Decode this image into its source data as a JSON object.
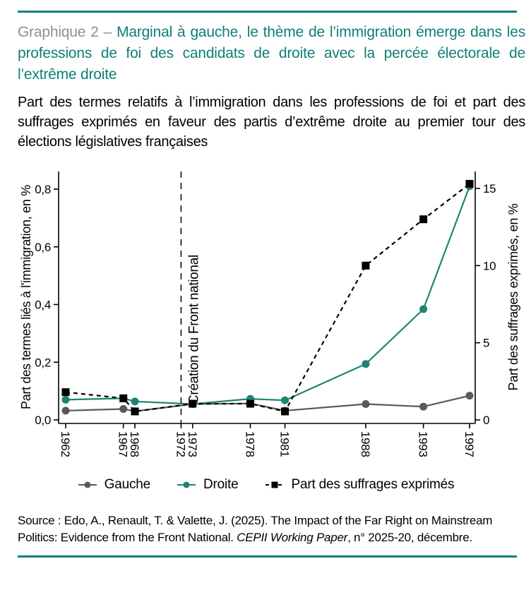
{
  "page": {
    "title_prefix": "Graphique 2 – ",
    "title": "Marginal à gauche, le thème de l’immigration émerge dans les professions de foi des candidats de droite avec la percée électorale de l’extrême droite",
    "subtitle": "Part des termes relatifs à l’immigration dans les professions de foi et part des suffrages exprimés en faveur des partis d’extrême droite au premier tour des élections législatives françaises",
    "source_prefix": "Source : Edo, A., Renault, T. & Valette, J. (2025). The Impact of the Far Right on Mainstream Politics: Evidence from the Front National. ",
    "source_italic": "CEPII Working Paper",
    "source_suffix": ", n° 2025-20, décembre."
  },
  "colors": {
    "teal": "#0e8076",
    "title_gray": "#8f8f8f",
    "line_teal": "#1e8473",
    "line_gray": "#595959",
    "black": "#000000"
  },
  "chart_data": {
    "type": "line",
    "x": [
      1962,
      1967,
      1968,
      1973,
      1978,
      1981,
      1988,
      1993,
      1997
    ],
    "x_ticks": [
      1962,
      1967,
      1968,
      1972,
      1973,
      1978,
      1981,
      1988,
      1993,
      1997
    ],
    "x_range": [
      1962,
      1997
    ],
    "series": [
      {
        "name": "Gauche",
        "axis": "left",
        "color": "#595959",
        "marker": "circle",
        "dash": false,
        "values": [
          0.032,
          0.038,
          0.03,
          0.055,
          0.057,
          0.032,
          0.055,
          0.046,
          0.084
        ]
      },
      {
        "name": "Droite",
        "axis": "left",
        "color": "#1e8473",
        "marker": "circle",
        "dash": false,
        "values": [
          0.07,
          0.075,
          0.064,
          0.055,
          0.073,
          0.068,
          0.194,
          0.384,
          0.81
        ]
      },
      {
        "name": "Part des suffrages exprimés",
        "axis": "right",
        "color": "#000000",
        "marker": "square",
        "dash": true,
        "values": [
          1.8,
          1.4,
          0.55,
          1.05,
          1.05,
          0.55,
          10.0,
          13.0,
          15.3
        ]
      }
    ],
    "left_axis": {
      "label": "Part des termes liés à l'immigration, en %",
      "ticks": [
        "0,0",
        "0,2",
        "0,4",
        "0,6",
        "0,8"
      ],
      "tick_values": [
        0,
        0.2,
        0.4,
        0.6,
        0.8
      ],
      "max": 0.8,
      "ylim": [
        0,
        0.8
      ]
    },
    "right_axis": {
      "label": "Part des suffrages exprimés, en %",
      "ticks": [
        "0",
        "5",
        "10",
        "15"
      ],
      "tick_values": [
        0,
        5,
        10,
        15
      ],
      "max": 15,
      "ylim": [
        0,
        15
      ]
    },
    "vline": {
      "x": 1972,
      "label": "Création du Front national"
    },
    "grid": false,
    "legend_position": "bottom"
  }
}
